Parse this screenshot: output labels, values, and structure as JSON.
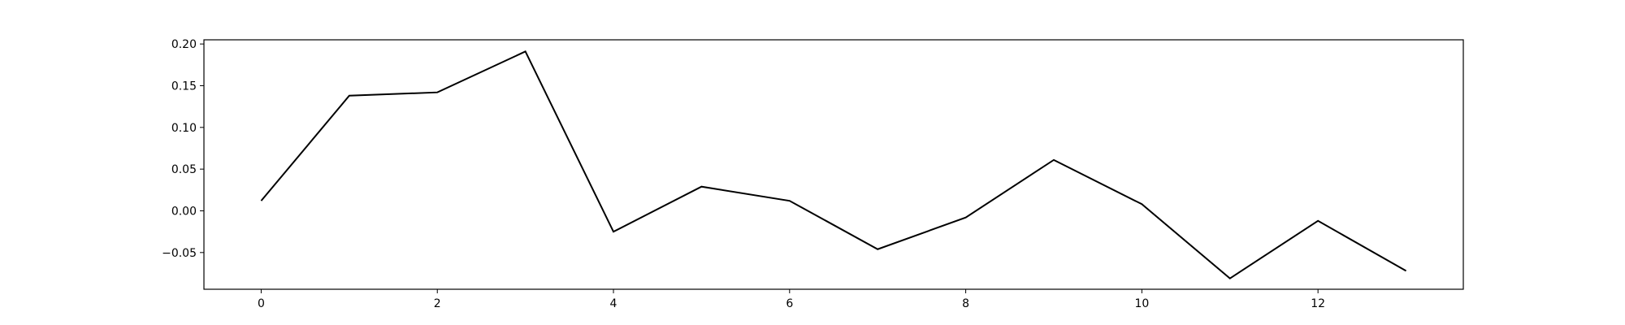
{
  "chart_data": {
    "type": "line",
    "title": "",
    "xlabel": "",
    "ylabel": "",
    "grid": false,
    "legend": "none",
    "xlim": [
      -0.65,
      13.65
    ],
    "ylim": [
      -0.094,
      0.205
    ],
    "x_ticks": [
      0,
      2,
      4,
      6,
      8,
      10,
      12
    ],
    "x_tick_labels": [
      "0",
      "2",
      "4",
      "6",
      "8",
      "10",
      "12"
    ],
    "y_ticks": [
      -0.05,
      0.0,
      0.05,
      0.1,
      0.15,
      0.2
    ],
    "y_tick_labels": [
      "−0.05",
      "0.00",
      "0.05",
      "0.10",
      "0.15",
      "0.20"
    ],
    "series": [
      {
        "color": "#000000",
        "x": [
          0,
          1,
          2,
          3,
          4,
          5,
          6,
          7,
          8,
          9,
          10,
          11,
          12,
          13
        ],
        "values": [
          0.012,
          0.138,
          0.142,
          0.191,
          -0.025,
          0.029,
          0.012,
          -0.046,
          -0.008,
          0.061,
          0.008,
          -0.081,
          -0.012,
          -0.072
        ]
      }
    ]
  }
}
